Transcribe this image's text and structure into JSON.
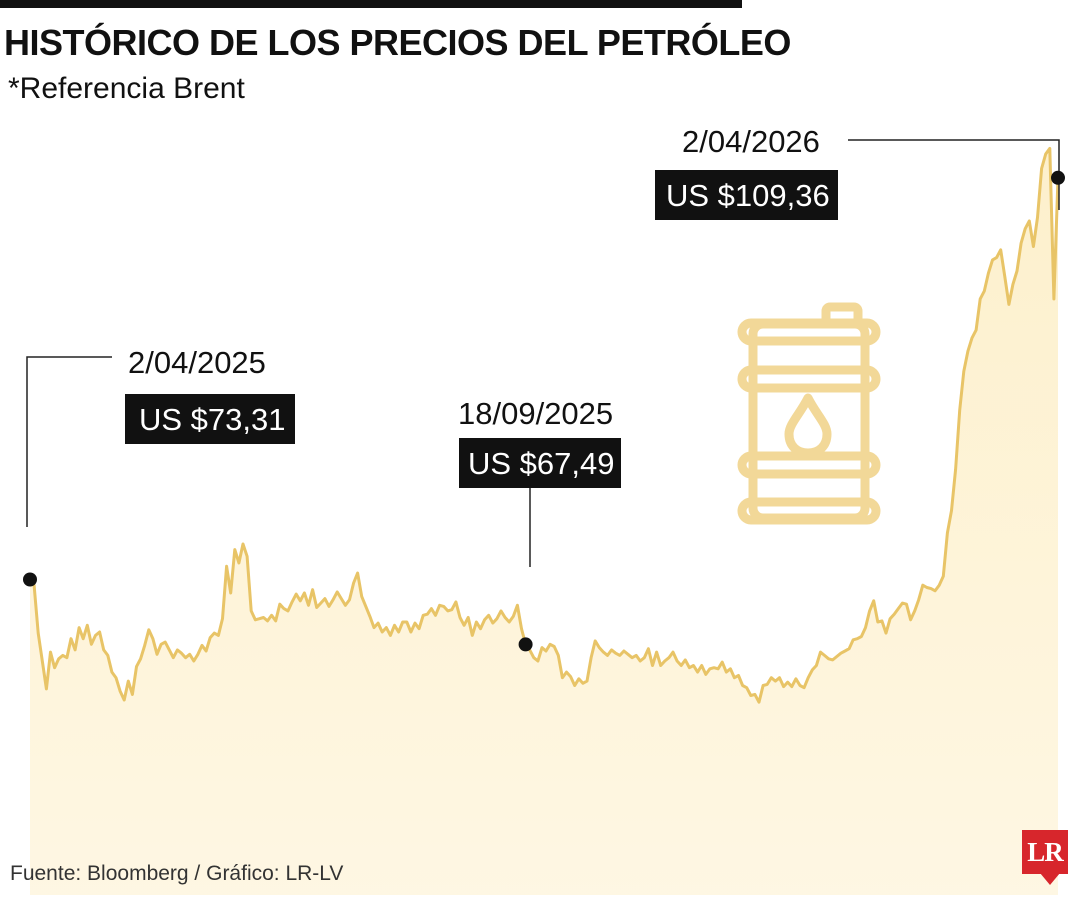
{
  "chart_data": {
    "type": "area",
    "title": "HISTÓRICO DE LOS PRECIOS DEL PETRÓLEO",
    "subtitle": "*Referencia Brent",
    "xlabel": "",
    "ylabel": "",
    "ylim": [
      45,
      115
    ],
    "grid": false,
    "colors": {
      "line": "#e8c467",
      "fill": "#fdf0cc"
    },
    "series": [
      {
        "values": [
          73.31,
          72.8,
          68.5,
          66.0,
          63.5,
          66.8,
          65.4,
          66.2,
          66.5,
          66.3,
          68.0,
          67.0,
          69.0,
          68.0,
          69.2,
          67.5,
          68.3,
          68.6,
          67.0,
          66.5,
          65.0,
          64.5,
          63.3,
          62.5,
          64.2,
          63.0,
          65.5,
          66.2,
          67.4,
          68.8,
          68.0,
          66.6,
          67.5,
          67.7,
          67.0,
          66.3,
          67.0,
          66.7,
          66.3,
          66.6,
          66.0,
          66.6,
          67.4,
          66.9,
          68.1,
          68.5,
          68.3,
          69.8,
          74.5,
          72.1,
          76.0,
          74.8,
          76.5,
          75.4,
          70.5,
          69.7,
          69.8,
          69.9,
          69.6,
          70.1,
          69.6,
          71.1,
          70.7,
          70.5,
          71.3,
          72.0,
          71.4,
          72.1,
          71.0,
          72.4,
          70.8,
          71.2,
          71.6,
          70.9,
          71.5,
          72.2,
          71.6,
          71.0,
          71.5,
          73.0,
          73.9,
          71.8,
          70.9,
          70.0,
          69.0,
          69.4,
          68.6,
          69.0,
          68.3,
          69.2,
          68.6,
          69.5,
          69.5,
          68.6,
          69.4,
          68.9,
          70.1,
          70.2,
          70.7,
          70.1,
          71.0,
          70.9,
          70.5,
          70.6,
          71.3,
          69.9,
          69.2,
          69.9,
          68.3,
          69.5,
          68.9,
          69.7,
          70.1,
          69.4,
          69.8,
          70.5,
          69.9,
          69.5,
          70.0,
          71.0,
          68.9,
          67.49,
          67.0,
          66.3,
          66.0,
          67.2,
          66.9,
          67.5,
          67.3,
          66.5,
          64.5,
          65.0,
          64.6,
          63.8,
          64.4,
          64.0,
          64.2,
          66.3,
          67.8,
          67.2,
          66.8,
          66.5,
          67.0,
          66.7,
          66.5,
          66.9,
          66.6,
          66.3,
          66.5,
          66.0,
          66.3,
          67.1,
          65.6,
          66.8,
          65.6,
          66.0,
          66.3,
          66.8,
          66.0,
          65.6,
          66.1,
          65.4,
          65.6,
          65.0,
          65.6,
          64.8,
          65.3,
          65.4,
          65.3,
          65.9,
          65.0,
          65.3,
          64.5,
          64.7,
          63.8,
          63.6,
          62.9,
          63.0,
          62.3,
          63.8,
          63.9,
          64.5,
          64.2,
          64.5,
          63.7,
          64.1,
          63.7,
          64.4,
          63.8,
          63.6,
          64.5,
          65.2,
          65.6,
          66.8,
          66.5,
          66.2,
          66.1,
          66.4,
          66.7,
          66.9,
          67.1,
          67.9,
          68.0,
          68.2,
          69.0,
          70.5,
          71.4,
          69.5,
          69.6,
          68.5,
          69.8,
          70.2,
          70.7,
          71.2,
          71.1,
          69.7,
          70.5,
          71.5,
          72.8,
          72.6,
          72.5,
          72.3,
          72.8,
          73.6,
          77.5,
          79.5,
          83.2,
          88.5,
          92.0,
          93.8,
          95.0,
          95.7,
          98.5,
          99.2,
          100.8,
          102.0,
          102.2,
          102.9,
          100.5,
          98.0,
          99.8,
          101.0,
          103.5,
          104.8,
          105.5,
          103.2,
          105.8,
          110.2,
          111.5,
          112.0,
          98.5,
          109.36
        ]
      }
    ],
    "annotations": [
      {
        "date": "2/04/2025",
        "price": "US $73,31"
      },
      {
        "date": "18/09/2025",
        "price": "US $67,49"
      },
      {
        "date": "2/04/2026",
        "price": "US $109,36"
      }
    ]
  },
  "source_text": "Fuente: Bloomberg / Gráfico: LR-LV",
  "logo_text": "LR"
}
